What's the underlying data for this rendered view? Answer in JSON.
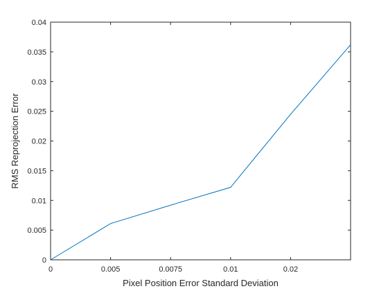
{
  "chart_data": {
    "type": "line",
    "title": "",
    "xlabel": "Pixel Position Error Standard Deviation",
    "ylabel": "RMS Reprojection Error",
    "x_tick_labels": [
      "0",
      "0.005",
      "0.0075",
      "0.01",
      "0.02"
    ],
    "y_ticks": [
      0,
      0.005,
      0.01,
      0.015,
      0.02,
      0.025,
      0.03,
      0.035,
      0.04
    ],
    "y_tick_labels": [
      "0",
      "0.005",
      "0.01",
      "0.015",
      "0.02",
      "0.025",
      "0.03",
      "0.035",
      "0.04"
    ],
    "ylim": [
      0,
      0.04
    ],
    "grid": false,
    "legend": "none",
    "line_color": "#0072bd",
    "axis_color": "#262626",
    "series": [
      {
        "x": [
          "0",
          "0.005",
          "0.0075",
          "0.01",
          "0.02",
          "end"
        ],
        "y": [
          0,
          0.0061,
          0.0092,
          0.0122,
          0.0245,
          0.0362
        ]
      }
    ]
  }
}
